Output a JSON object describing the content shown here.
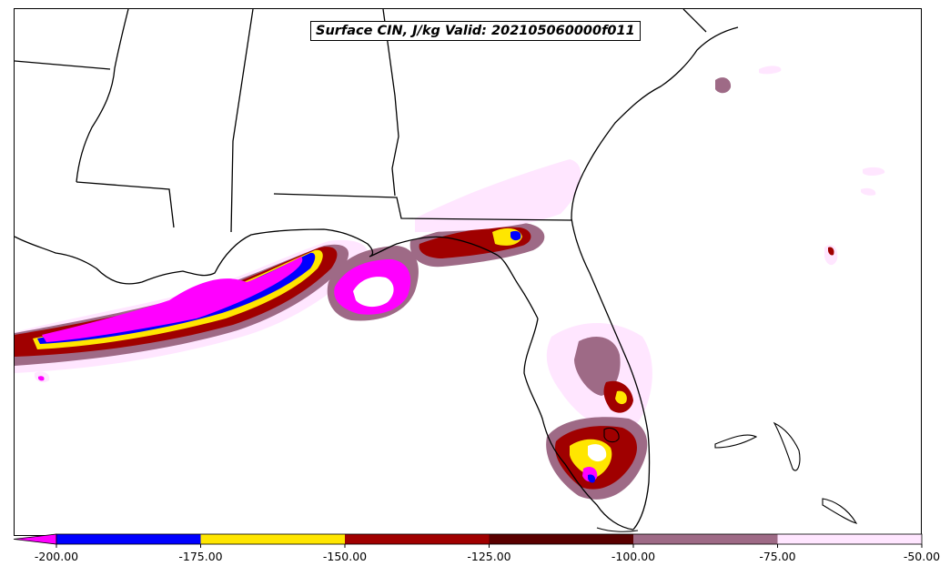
{
  "map": {
    "title": "Surface CIN, J/kg Valid: 202105060000f011",
    "field": "Surface CIN",
    "units": "J/kg",
    "valid": "202105060000f011",
    "region": "Gulf of Mexico / Southeast US / Florida",
    "land_color": "#ffffff",
    "outline_color": "#000000"
  },
  "colorbar": {
    "extend": "min",
    "levels": [
      -200,
      -175,
      -150,
      -125,
      -100,
      -75,
      -50
    ],
    "tick_labels": [
      "-200.00",
      "-175.00",
      "-150.00",
      "-125.00",
      "-100.00",
      "-75.00",
      "-50.00"
    ],
    "colors": {
      "below_min": "#ff00ff",
      "bins": [
        "#0000ff",
        "#ffe600",
        "#a00000",
        "#5a0000",
        "#9e6a86",
        "#ffe6ff"
      ]
    }
  }
}
